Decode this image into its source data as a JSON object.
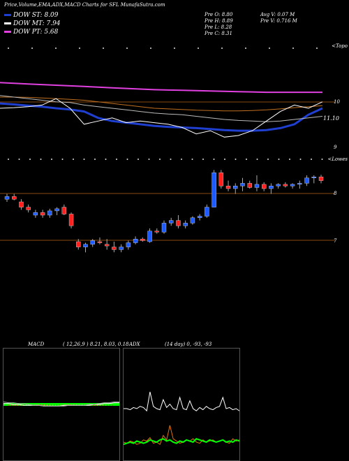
{
  "header": {
    "title": "Price,Volume,EMA,ADX,MACD Charts for SFL  MunafaSutra.com",
    "legend": [
      {
        "label": "DOW ST: 8.09",
        "color": "#1f3fd0"
      },
      {
        "label": "DOW MT: 7.94",
        "color": "#ffffff"
      },
      {
        "label": "DOW PT: 5.68",
        "color": "#e040e0"
      }
    ],
    "stats_left": [
      "Pre  O: 8.80",
      "Pre  H: 8.89",
      "Pre  L: 8.28",
      "Pre  C: 8.31"
    ],
    "stats_right": [
      "Avg V: 0.07  M",
      "Pre  V: 0.716  M"
    ]
  },
  "panels": {
    "ema": {
      "corner_label": "<Topo",
      "price_labels": [
        "10",
        "11.10",
        "9"
      ]
    },
    "price": {
      "corner_label": "<Lowes",
      "price_labels": [
        "8",
        "7"
      ]
    },
    "macd": {
      "label": "MACD",
      "params": "( 12,26,9 ) 8.21, 8.03, 0.18"
    },
    "adx": {
      "label": "ADX",
      "params": "(14 day) 0, -93, -93"
    }
  },
  "colors": {
    "up": "#1e5bff",
    "down": "#ff2020",
    "ema_blue": "#1f3fd0",
    "ema_white": "#ffffff",
    "ema_magenta": "#e040e0",
    "ema_orange": "#c07020",
    "macd_green": "#00ff00",
    "adx_orange": "#e07010"
  },
  "chart_data": [
    {
      "type": "candlestick",
      "title": "",
      "ohlc": [
        [
          7.9,
          8.0,
          7.85,
          7.95
        ],
        [
          7.95,
          8.0,
          7.88,
          7.9
        ],
        [
          7.85,
          7.9,
          7.7,
          7.75
        ],
        [
          7.75,
          7.8,
          7.65,
          7.7
        ],
        [
          7.6,
          7.7,
          7.55,
          7.65
        ],
        [
          7.65,
          7.7,
          7.55,
          7.6
        ],
        [
          7.6,
          7.72,
          7.55,
          7.68
        ],
        [
          7.68,
          7.75,
          7.6,
          7.72
        ],
        [
          7.75,
          7.8,
          7.6,
          7.62
        ],
        [
          7.62,
          7.65,
          7.35,
          7.4
        ],
        [
          7.1,
          7.15,
          6.95,
          7.0
        ],
        [
          7.0,
          7.08,
          6.9,
          7.05
        ],
        [
          7.05,
          7.15,
          7.0,
          7.12
        ],
        [
          7.1,
          7.18,
          7.05,
          7.08
        ],
        [
          7.05,
          7.15,
          6.95,
          7.02
        ],
        [
          7.0,
          7.1,
          6.9,
          6.95
        ],
        [
          6.95,
          7.05,
          6.9,
          7.0
        ],
        [
          7.0,
          7.12,
          6.95,
          7.08
        ],
        [
          7.08,
          7.2,
          7.05,
          7.15
        ],
        [
          7.15,
          7.18,
          7.1,
          7.12
        ],
        [
          7.1,
          7.35,
          7.08,
          7.3
        ],
        [
          7.3,
          7.35,
          7.25,
          7.28
        ],
        [
          7.28,
          7.5,
          7.25,
          7.45
        ],
        [
          7.45,
          7.55,
          7.4,
          7.5
        ],
        [
          7.5,
          7.6,
          7.35,
          7.4
        ],
        [
          7.4,
          7.5,
          7.35,
          7.45
        ],
        [
          7.45,
          7.58,
          7.42,
          7.55
        ],
        [
          7.55,
          7.62,
          7.5,
          7.58
        ],
        [
          7.58,
          7.8,
          7.55,
          7.75
        ],
        [
          7.75,
          8.45,
          7.75,
          8.4
        ],
        [
          8.4,
          8.45,
          8.1,
          8.15
        ],
        [
          8.15,
          8.25,
          8.05,
          8.1
        ],
        [
          8.1,
          8.2,
          8.0,
          8.15
        ],
        [
          8.15,
          8.3,
          8.05,
          8.2
        ],
        [
          8.2,
          8.25,
          8.1,
          8.12
        ],
        [
          8.12,
          8.35,
          8.05,
          8.18
        ],
        [
          8.18,
          8.22,
          8.05,
          8.1
        ],
        [
          8.1,
          8.2,
          8.0,
          8.15
        ],
        [
          8.15,
          8.2,
          8.1,
          8.18
        ],
        [
          8.18,
          8.22,
          8.12,
          8.15
        ],
        [
          8.15,
          8.2,
          8.1,
          8.18
        ],
        [
          8.18,
          8.25,
          8.1,
          8.2
        ],
        [
          8.2,
          8.35,
          8.15,
          8.3
        ],
        [
          8.3,
          8.35,
          8.2,
          8.32
        ],
        [
          8.32,
          8.36,
          8.2,
          8.25
        ]
      ],
      "ylim": [
        6.85,
        8.6
      ]
    },
    {
      "type": "line",
      "title": "",
      "series": [
        {
          "values": [
            10.35,
            10.35,
            10.34,
            10.32,
            10.3,
            10.28,
            10.25,
            10.2,
            10.15,
            10.1,
            10.05,
            10.0,
            9.98,
            9.96,
            9.94,
            9.93,
            9.92,
            9.92,
            9.93,
            9.95,
            9.98,
            10.02,
            10.05,
            10.08
          ]
        },
        {
          "values": [
            10.15,
            10.12,
            10.08,
            10.05,
            10.0,
            9.96,
            9.9,
            9.7,
            9.6,
            9.55,
            9.5,
            9.45,
            9.42,
            9.4,
            9.38,
            9.35,
            9.32,
            9.3,
            9.3,
            9.32,
            9.38,
            9.5,
            9.8,
            10.0
          ]
        },
        {
          "values": [
            10.8,
            10.78,
            10.76,
            10.74,
            10.72,
            10.7,
            10.68,
            10.66,
            10.64,
            10.62,
            10.6,
            10.58,
            10.57,
            10.56,
            10.55,
            10.54,
            10.53,
            10.52,
            10.51,
            10.5,
            10.5,
            10.5,
            10.5,
            10.5
          ]
        },
        {
          "values": [
            10.4,
            10.35,
            10.3,
            10.25,
            10.2,
            10.18,
            10.1,
            10.05,
            10.0,
            9.95,
            9.9,
            9.85,
            9.82,
            9.8,
            9.75,
            9.7,
            9.65,
            9.62,
            9.6,
            9.58,
            9.6,
            9.65,
            9.7,
            9.75
          ]
        },
        {
          "values": [
            10.0,
            10.02,
            10.05,
            10.1,
            10.3,
            10.0,
            9.5,
            9.6,
            9.7,
            9.55,
            9.6,
            9.55,
            9.5,
            9.4,
            9.2,
            9.3,
            9.1,
            9.15,
            9.3,
            9.6,
            9.9,
            10.1,
            10.0,
            10.2
          ]
        }
      ],
      "ylim": [
        8.8,
        11.2
      ]
    },
    {
      "type": "line",
      "title": "",
      "series": [
        {
          "values": [
            0.2,
            0.2,
            0.19,
            0.19,
            0.18,
            0.18,
            0.18,
            0.18,
            0.17,
            0.17,
            0.17,
            0.17,
            0.18,
            0.18,
            0.18,
            0.18,
            0.18,
            0.18,
            0.19,
            0.19,
            0.2,
            0.2,
            0.21,
            0.21
          ]
        },
        {
          "values": [
            0.22,
            0.21,
            0.21,
            0.2,
            0.2,
            0.19,
            0.18,
            0.18,
            0.17,
            0.17,
            0.17,
            0.17,
            0.17,
            0.18,
            0.18,
            0.18,
            0.18,
            0.19,
            0.19,
            0.2,
            0.21,
            0.21,
            0.22,
            0.22
          ]
        }
      ],
      "ylim": [
        0,
        1
      ]
    },
    {
      "type": "line",
      "title": "",
      "series": [
        {
          "values": [
            40,
            40,
            39,
            41,
            40,
            42,
            41,
            38,
            55,
            42,
            40,
            39,
            48,
            41,
            44,
            40,
            39,
            50,
            40,
            39,
            47,
            40,
            38,
            41,
            39,
            42,
            40,
            39,
            41,
            42,
            50,
            40,
            41,
            39,
            40,
            38
          ]
        },
        {
          "values": [
            10,
            9,
            11,
            10,
            8,
            9,
            12,
            11,
            14,
            9,
            10,
            8,
            16,
            12,
            25,
            13,
            11,
            9,
            10,
            12,
            11,
            13,
            10,
            9,
            12,
            10,
            11,
            12,
            10,
            11,
            12,
            10,
            9,
            13,
            11,
            12
          ]
        },
        {
          "values": [
            8,
            9,
            10,
            9,
            11,
            10,
            9,
            10,
            12,
            11,
            10,
            12,
            13,
            11,
            12,
            10,
            9,
            11,
            10,
            12,
            11,
            10,
            13,
            12,
            11,
            10,
            12,
            11,
            10,
            11,
            12,
            10,
            11,
            10,
            12,
            11
          ]
        }
      ],
      "ylim": [
        0,
        100
      ]
    }
  ]
}
